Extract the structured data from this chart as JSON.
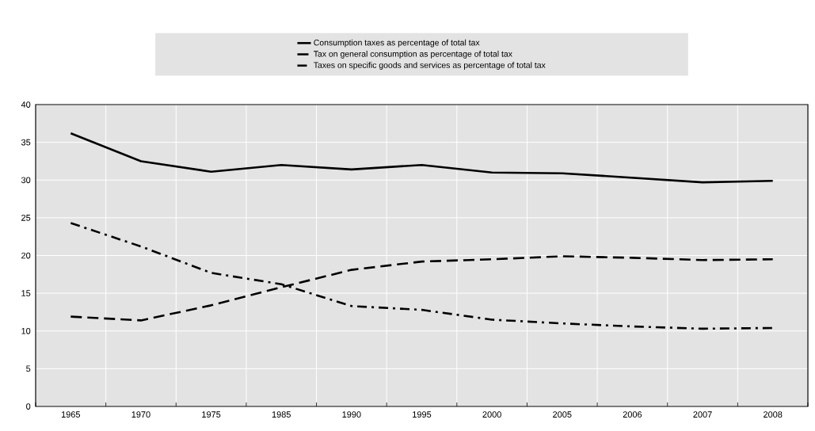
{
  "chart_data": {
    "type": "line",
    "categories": [
      "1965",
      "1970",
      "1975",
      "1985",
      "1990",
      "1995",
      "2000",
      "2005",
      "2006",
      "2007",
      "2008"
    ],
    "series": [
      {
        "name": "Consumption taxes as percentage of total tax",
        "color": "#000000",
        "line_style": "solid",
        "values": [
          36.2,
          32.5,
          31.1,
          32.0,
          31.4,
          32.0,
          31.0,
          30.9,
          30.3,
          29.7,
          29.9
        ]
      },
      {
        "name": "Tax on general consumption as percentage of total tax",
        "color": "#000000",
        "line_style": "dashed",
        "values": [
          11.9,
          11.4,
          13.4,
          15.8,
          18.1,
          19.2,
          19.5,
          19.9,
          19.7,
          19.4,
          19.5
        ]
      },
      {
        "name": "Taxes on specific goods and services as percentage of total tax",
        "color": "#000000",
        "line_style": "dashdot",
        "values": [
          24.3,
          21.2,
          17.7,
          16.2,
          13.3,
          12.8,
          11.5,
          11.0,
          10.6,
          10.3,
          10.4
        ]
      }
    ],
    "ylim": [
      0,
      40
    ],
    "yticks": [
      0,
      5,
      10,
      15,
      20,
      25,
      30,
      35,
      40
    ],
    "grid": true,
    "legend": "top"
  }
}
